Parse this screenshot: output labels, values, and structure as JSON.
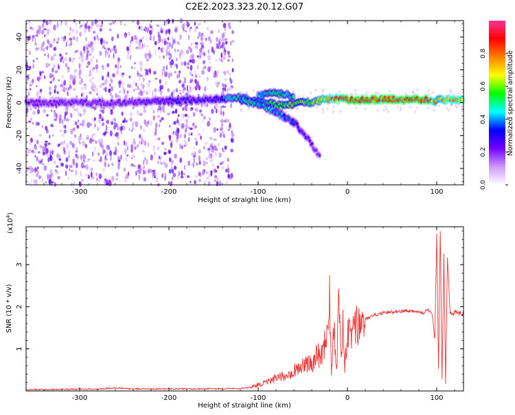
{
  "title": "C2E2.2023.323.20.12.G07",
  "colorbar": {
    "label": "Normalized spectral amplitude",
    "ticks": [
      "0.0",
      "0.2",
      "0.4",
      "0.6",
      "0.8"
    ],
    "tick_values": [
      0.0,
      0.2,
      0.4,
      0.6,
      0.8
    ],
    "range": [
      0.0,
      1.0
    ],
    "colors": [
      "#ffffff",
      "#cc99ff",
      "#7000ff",
      "#0000ff",
      "#00ffff",
      "#00ff00",
      "#ffff00",
      "#ff8000",
      "#ff0000",
      "#ff3399"
    ]
  },
  "chart_data": [
    {
      "type": "heatmap",
      "title": "",
      "xlabel": "Height of straight line (km)",
      "ylabel": "Frequency (Hz)",
      "xlim": [
        -360,
        130
      ],
      "ylim": [
        -50,
        50
      ],
      "xticks": [
        -300,
        -200,
        -100,
        0,
        100
      ],
      "xtick_labels": [
        "-300",
        "-200",
        "-100",
        "0",
        "100"
      ],
      "yticks": [
        -40,
        -20,
        0,
        20,
        40
      ],
      "ytick_labels": [
        "-40",
        "-20",
        "0",
        "20",
        "40"
      ],
      "ridges": [
        {
          "x": [
            -360,
            -300,
            -250,
            -200,
            -150,
            -125,
            -100,
            -75,
            -50,
            -25,
            0,
            50,
            90,
            100,
            110,
            130
          ],
          "y": [
            0,
            0,
            0,
            1,
            2,
            3,
            1,
            -2,
            0,
            2,
            2,
            2,
            2,
            1,
            2,
            2
          ],
          "amplitude": [
            0.25,
            0.25,
            0.25,
            0.3,
            0.3,
            0.5,
            0.55,
            0.6,
            0.6,
            0.75,
            0.95,
            0.95,
            0.95,
            0.7,
            0.8,
            0.8
          ]
        },
        {
          "x": [
            -120,
            -100,
            -80,
            -60,
            -50,
            -40,
            -30
          ],
          "y": [
            2,
            -1,
            -6,
            -12,
            -18,
            -25,
            -34
          ],
          "amplitude": [
            0.5,
            0.5,
            0.45,
            0.35,
            0.3,
            0.25,
            0.2
          ]
        },
        {
          "x": [
            -100,
            -80,
            -60
          ],
          "y": [
            4,
            6,
            4
          ],
          "amplitude": [
            0.5,
            0.55,
            0.5
          ]
        }
      ]
    },
    {
      "type": "line",
      "title": "",
      "xlabel": "Height of straight line (km)",
      "ylabel": "SNR (10 * v/v)",
      "y_multiplier": "(x10",
      "y_multiplier_exp": "4",
      "y_multiplier_close": ")",
      "xlim": [
        -360,
        130
      ],
      "ylim": [
        0,
        3.9
      ],
      "xticks": [
        -300,
        -200,
        -100,
        0,
        100
      ],
      "xtick_labels": [
        "-300",
        "-200",
        "-100",
        "0",
        "100"
      ],
      "yticks": [
        1,
        2,
        3
      ],
      "ytick_labels": [
        "1",
        "2",
        "3"
      ],
      "color": "#ee3333",
      "series": [
        {
          "x": [
            -360,
            -320,
            -280,
            -260,
            -240,
            -200,
            -160,
            -120,
            -110,
            -100,
            -90,
            -80,
            -70,
            -60,
            -50,
            -40,
            -35,
            -30,
            -25,
            -22,
            -20,
            -18,
            -15,
            -12,
            -10,
            -7,
            -5,
            -3,
            0,
            5,
            10,
            15,
            20,
            25,
            30,
            40,
            50,
            60,
            70,
            80,
            85,
            90,
            95,
            98,
            100,
            102,
            104,
            106,
            108,
            110,
            112,
            115,
            120,
            130
          ],
          "y": [
            0.03,
            0.04,
            0.04,
            0.07,
            0.05,
            0.05,
            0.05,
            0.06,
            0.08,
            0.15,
            0.2,
            0.3,
            0.35,
            0.5,
            0.6,
            0.65,
            0.9,
            0.8,
            1.2,
            1.5,
            2.35,
            0.5,
            1.6,
            0.6,
            2.05,
            0.8,
            1.7,
            0.5,
            1.3,
            1.4,
            1.5,
            1.6,
            1.7,
            1.75,
            1.8,
            1.85,
            1.88,
            1.9,
            1.9,
            1.9,
            1.85,
            1.95,
            1.8,
            1.2,
            3.8,
            0.5,
            3.75,
            0.3,
            3.2,
            0.1,
            3.2,
            1.9,
            1.85,
            1.85
          ]
        }
      ]
    }
  ]
}
